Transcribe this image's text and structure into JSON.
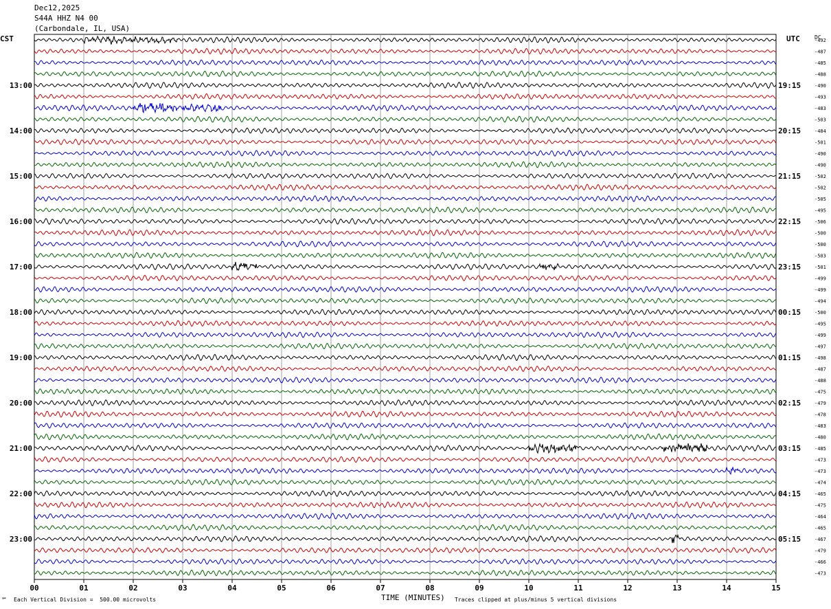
{
  "header": {
    "date": "Dec12,2025",
    "station": "S44A HHZ N4 00",
    "location": "(Carbondale, IL, USA)"
  },
  "left_timezone": "CST",
  "right_timezone": "UTC",
  "dc_label": "DC",
  "footer": {
    "scale": "Each Vertical Division =  500.00 microvolts",
    "clip": "Traces clipped at plus/minus 5 vertical divisions",
    "mark": "℠"
  },
  "chart_data": {
    "type": "line",
    "title": "Dec12,2025 S44A HHZ N4 00 (Carbondale, IL, USA)",
    "xlabel": "TIME (MINUTES)",
    "xlim": [
      0,
      15
    ],
    "x_ticks": [
      "00",
      "01",
      "02",
      "03",
      "04",
      "05",
      "06",
      "07",
      "08",
      "09",
      "10",
      "11",
      "12",
      "13",
      "14",
      "15"
    ],
    "left_hour_labels": [
      "13:00",
      "14:00",
      "15:00",
      "16:00",
      "17:00",
      "18:00",
      "19:00",
      "20:00",
      "21:00",
      "22:00",
      "23:00"
    ],
    "right_hour_labels": [
      "19:15",
      "20:15",
      "21:15",
      "22:15",
      "23:15",
      "00:15",
      "01:15",
      "02:15",
      "03:15",
      "04:15",
      "05:15"
    ],
    "trace_colors": [
      "#000000",
      "#cc0000",
      "#0000cc",
      "#006600"
    ],
    "dc_offsets": [
      -492,
      -487,
      -485,
      -488,
      -490,
      -493,
      -483,
      -503,
      -484,
      -501,
      -490,
      -490,
      -502,
      -502,
      -505,
      -495,
      -506,
      -500,
      -500,
      -503,
      -501,
      -499,
      -499,
      -494,
      -500,
      -495,
      -499,
      -497,
      -498,
      -487,
      -488,
      -475,
      -479,
      -478,
      -483,
      -480,
      -485,
      -473,
      -473,
      -474,
      -465,
      -475,
      -464,
      -465,
      -467,
      -479,
      -466,
      -473
    ],
    "events": [
      {
        "trace": 6,
        "start_min": 2.0,
        "end_min": 2.9,
        "amp": 2.2
      },
      {
        "trace": 6,
        "start_min": 3.0,
        "end_min": 3.8,
        "amp": 1.5
      },
      {
        "trace": 0,
        "start_min": 1.0,
        "end_min": 2.9,
        "amp": 1.3
      },
      {
        "trace": 20,
        "start_min": 4.0,
        "end_min": 4.5,
        "amp": 2.0
      },
      {
        "trace": 20,
        "start_min": 10.2,
        "end_min": 10.6,
        "amp": 1.5
      },
      {
        "trace": 36,
        "start_min": 10.0,
        "end_min": 11.0,
        "amp": 2.2
      },
      {
        "trace": 36,
        "start_min": 12.7,
        "end_min": 13.6,
        "amp": 2.1
      },
      {
        "trace": 44,
        "start_min": 12.9,
        "end_min": 13.1,
        "amp": 2.0
      },
      {
        "trace": 38,
        "start_min": 14.0,
        "end_min": 14.3,
        "amp": 1.6
      }
    ]
  }
}
